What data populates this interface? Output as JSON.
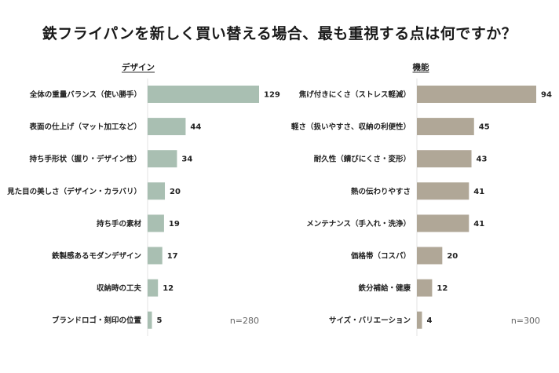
{
  "title": "鉄フライパンを新しく買い替える場合、最も重視する点は何ですか？",
  "chart_data": [
    {
      "type": "bar",
      "orientation": "horizontal",
      "title": "デザイン",
      "color": "#a9bfb2",
      "n_label": "n=280",
      "categories": [
        "全体の重量バランス（使い勝手）",
        "表面の仕上げ（マット加工など）",
        "持ち手形状（握り・デザイン性）",
        "見た目の美しさ（デザイン・カラバリ）",
        "持ち手の素材",
        "鉄製感あるモダンデザイン",
        "収納時の工夫",
        "ブランドロゴ・刻印の位置"
      ],
      "values": [
        129,
        44,
        34,
        20,
        19,
        17,
        12,
        5
      ],
      "xlim": [
        0,
        129
      ]
    },
    {
      "type": "bar",
      "orientation": "horizontal",
      "title": "機能",
      "color": "#b0a797",
      "n_label": "n=300",
      "categories": [
        "焦げ付きにくさ（ストレス軽減）",
        "軽さ（扱いやすさ、収納の利便性）",
        "耐久性（錆びにくさ・変形）",
        "熱の伝わりやすさ",
        "メンテナンス（手入れ・洗浄）",
        "価格帯（コスパ）",
        "鉄分補給・健康",
        "サイズ・バリエーション"
      ],
      "values": [
        94,
        45,
        43,
        41,
        41,
        20,
        12,
        4
      ],
      "xlim": [
        0,
        94
      ]
    }
  ]
}
